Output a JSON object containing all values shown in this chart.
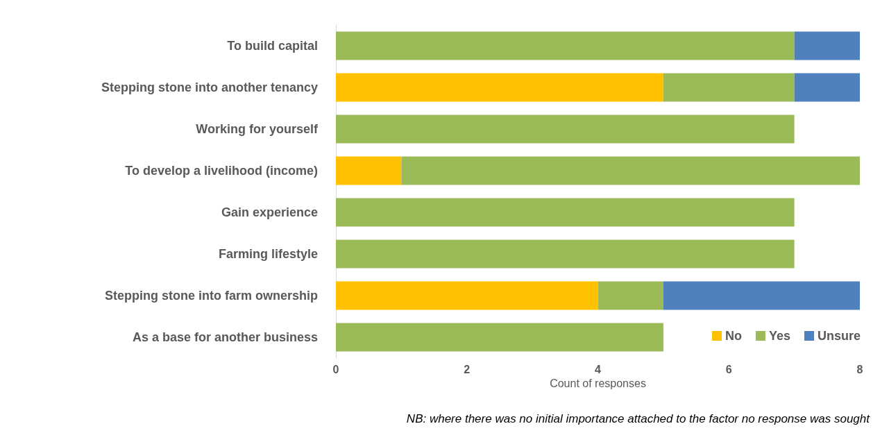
{
  "chart_data": {
    "type": "bar",
    "orientation": "horizontal",
    "stacked": true,
    "categories": [
      "To build capital",
      "Stepping stone into another tenancy",
      "Working for yourself",
      "To develop a livelihood (income)",
      "Gain experience",
      "Farming lifestyle",
      "Stepping stone into farm ownership",
      "As a base for another business"
    ],
    "series": [
      {
        "name": "No",
        "color": "#ffc000",
        "values": [
          0,
          5,
          0,
          1,
          0,
          0,
          4,
          0
        ]
      },
      {
        "name": "Yes",
        "color": "#9bbb59",
        "values": [
          7,
          2,
          7,
          7,
          7,
          7,
          1,
          5
        ]
      },
      {
        "name": "Unsure",
        "color": "#4f81bd",
        "values": [
          1,
          1,
          0,
          0,
          0,
          0,
          3,
          0
        ]
      }
    ],
    "xlim": [
      0,
      8
    ],
    "xticks": [
      0,
      2,
      4,
      6,
      8
    ],
    "xlabel": "Count of responses",
    "grid": false,
    "legend": "bottom right",
    "annotations": [
      "NB: where there was no initial importance attached to the factor no response was sought"
    ]
  }
}
